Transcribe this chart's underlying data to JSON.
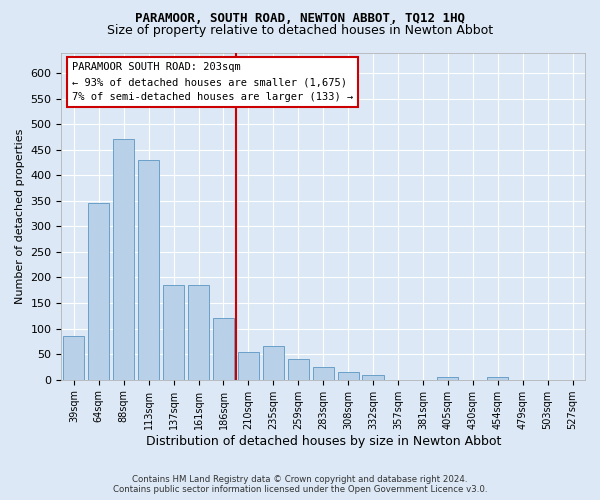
{
  "title": "PARAMOOR, SOUTH ROAD, NEWTON ABBOT, TQ12 1HQ",
  "subtitle": "Size of property relative to detached houses in Newton Abbot",
  "xlabel": "Distribution of detached houses by size in Newton Abbot",
  "ylabel": "Number of detached properties",
  "footer_line1": "Contains HM Land Registry data © Crown copyright and database right 2024.",
  "footer_line2": "Contains public sector information licensed under the Open Government Licence v3.0.",
  "bar_labels": [
    "39sqm",
    "64sqm",
    "88sqm",
    "113sqm",
    "137sqm",
    "161sqm",
    "186sqm",
    "210sqm",
    "235sqm",
    "259sqm",
    "283sqm",
    "308sqm",
    "332sqm",
    "357sqm",
    "381sqm",
    "405sqm",
    "430sqm",
    "454sqm",
    "479sqm",
    "503sqm",
    "527sqm"
  ],
  "bar_values": [
    85,
    345,
    470,
    430,
    185,
    185,
    120,
    55,
    65,
    40,
    25,
    15,
    10,
    0,
    0,
    5,
    0,
    5,
    0,
    0,
    0
  ],
  "property_bin_index": 7,
  "annotation_text1": "PARAMOOR SOUTH ROAD: 203sqm",
  "annotation_text2": "← 93% of detached houses are smaller (1,675)",
  "annotation_text3": "7% of semi-detached houses are larger (133) →",
  "vline_color": "#cc0000",
  "bar_color": "#b8d0e8",
  "bar_edge_color": "#6aa0c8",
  "ylim_max": 640,
  "yticks": [
    0,
    50,
    100,
    150,
    200,
    250,
    300,
    350,
    400,
    450,
    500,
    550,
    600
  ],
  "bg_color": "#dce8f5",
  "plot_bg_color": "#dce8f5",
  "annotation_box_facecolor": "#ffffff",
  "annotation_box_edgecolor": "#cc0000",
  "grid_color": "#ffffff",
  "title_fontsize": 9,
  "subtitle_fontsize": 9,
  "ylabel_fontsize": 8,
  "xlabel_fontsize": 9,
  "tick_fontsize": 8,
  "xtick_fontsize": 7
}
